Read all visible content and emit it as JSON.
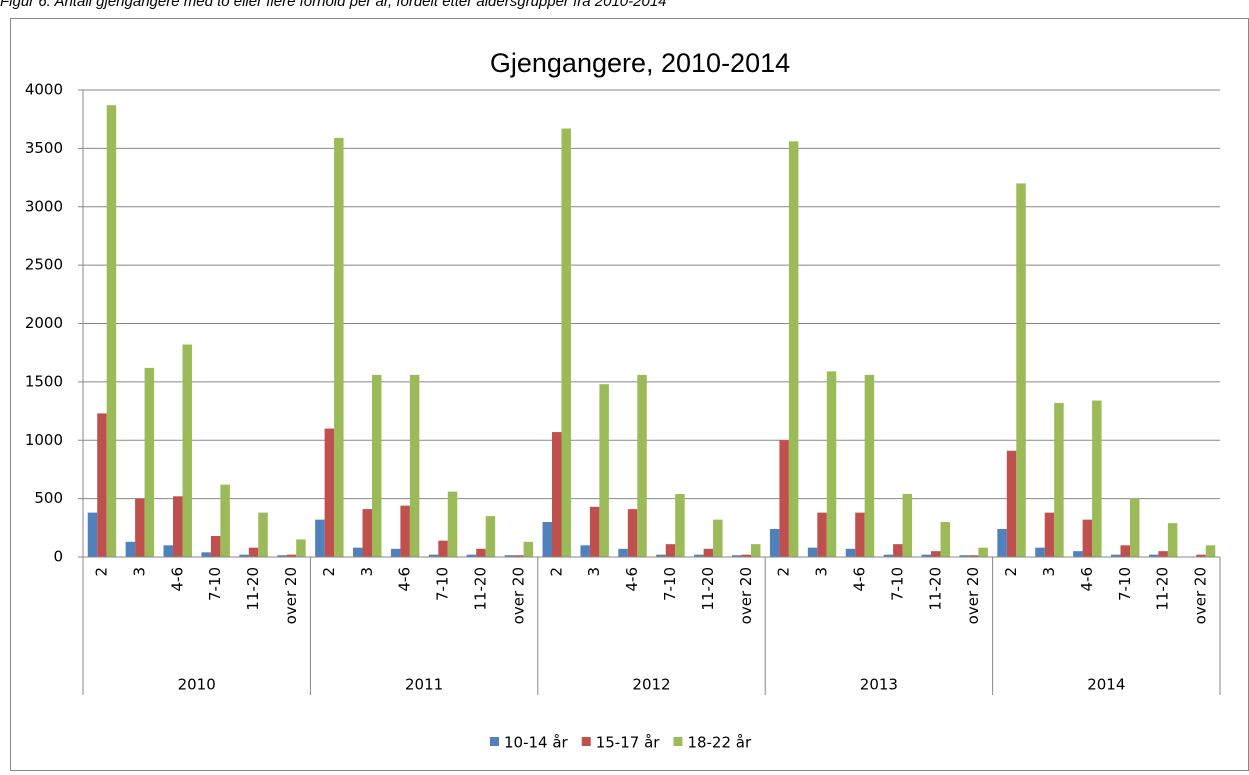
{
  "caption": "Figur 6: Antall gjengangere med to eller flere forhold per år, fordelt etter aldersgrupper fra 2010-2014",
  "chart_data": {
    "type": "bar",
    "title": "Gjengangere, 2010-2014",
    "categories": [
      "2",
      "3",
      "4-6",
      "7-10",
      "11-20",
      "over 20",
      "2",
      "3",
      "4-6",
      "7-10",
      "11-20",
      "over 20",
      "2",
      "3",
      "4-6",
      "7-10",
      "11-20",
      "over 20",
      "2",
      "3",
      "4-6",
      "7-10",
      "11-20",
      "over 20",
      "2",
      "3",
      "4-6",
      "7-10",
      "11-20",
      "over 20"
    ],
    "category_groups": [
      "2010",
      "2011",
      "2012",
      "2013",
      "2014"
    ],
    "series": [
      {
        "name": "10-14 år",
        "color": "#4f81bd",
        "values": [
          380,
          130,
          100,
          40,
          20,
          15,
          320,
          80,
          70,
          20,
          20,
          15,
          300,
          100,
          70,
          20,
          20,
          15,
          240,
          80,
          70,
          20,
          20,
          15,
          240,
          80,
          50,
          20,
          20,
          0
        ]
      },
      {
        "name": "15-17 år",
        "color": "#c0504d",
        "values": [
          1230,
          500,
          520,
          180,
          80,
          20,
          1100,
          410,
          440,
          140,
          70,
          15,
          1070,
          430,
          410,
          110,
          70,
          20,
          1000,
          380,
          380,
          110,
          50,
          15,
          910,
          380,
          320,
          100,
          50,
          20
        ]
      },
      {
        "name": "18-22 år",
        "color": "#9bbb59",
        "values": [
          3870,
          1620,
          1820,
          620,
          380,
          150,
          3590,
          1560,
          1560,
          560,
          350,
          130,
          3670,
          1480,
          1560,
          540,
          320,
          110,
          3560,
          1590,
          1560,
          540,
          300,
          80,
          3200,
          1320,
          1340,
          500,
          290,
          100
        ]
      }
    ],
    "ylim": [
      0,
      4000
    ],
    "yticks": [
      0,
      500,
      1000,
      1500,
      2000,
      2500,
      3000,
      3500,
      4000
    ],
    "grid": true,
    "legend": "bottom"
  }
}
